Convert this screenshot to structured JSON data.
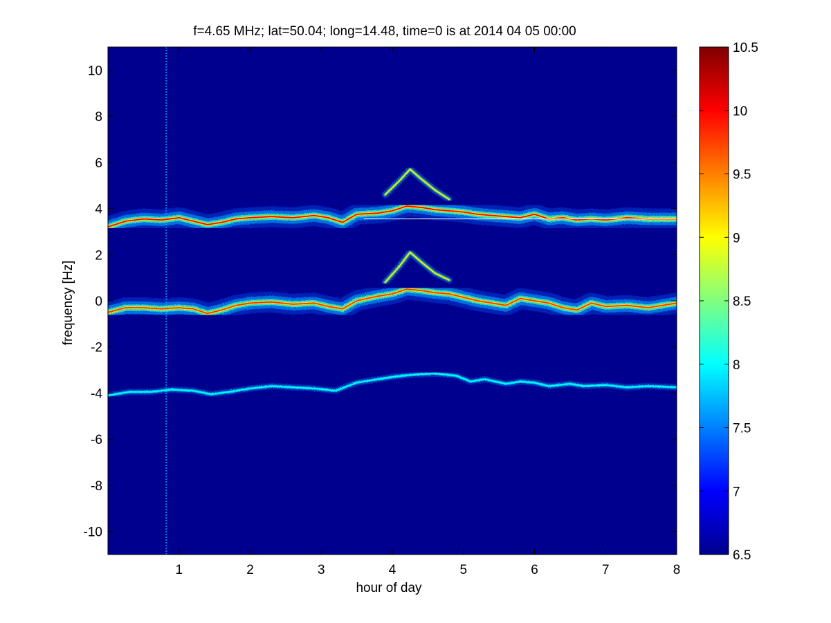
{
  "chart_data": {
    "type": "heatmap",
    "title": "f=4.65 MHz;  lat=50.04; long=14.48, time=0 is at 2014 04 05 00:00",
    "xlabel": "hour of day",
    "ylabel": "frequency [Hz]",
    "xlim": [
      0,
      8
    ],
    "ylim": [
      -11,
      11
    ],
    "xticks": [
      1,
      2,
      3,
      4,
      5,
      6,
      7,
      8
    ],
    "yticks": [
      -10,
      -8,
      -6,
      -4,
      -2,
      0,
      2,
      4,
      6,
      8,
      10
    ],
    "colorbar": {
      "min": 6.5,
      "max": 10.5,
      "ticks": [
        6.5,
        7,
        7.5,
        8,
        8.5,
        9,
        9.5,
        10,
        10.5
      ],
      "colormap": "jet"
    },
    "background_color": "#00008F",
    "vertical_streak_hour": 0.82,
    "traces": [
      {
        "name_hint": "upper trace",
        "peak_intensity": 10.0,
        "points": [
          [
            0,
            3.2
          ],
          [
            0.25,
            3.45
          ],
          [
            0.5,
            3.55
          ],
          [
            0.75,
            3.5
          ],
          [
            1.0,
            3.6
          ],
          [
            1.2,
            3.45
          ],
          [
            1.4,
            3.3
          ],
          [
            1.6,
            3.4
          ],
          [
            1.8,
            3.55
          ],
          [
            2.0,
            3.6
          ],
          [
            2.3,
            3.65
          ],
          [
            2.6,
            3.6
          ],
          [
            2.9,
            3.7
          ],
          [
            3.1,
            3.6
          ],
          [
            3.3,
            3.4
          ],
          [
            3.5,
            3.75
          ],
          [
            3.8,
            3.8
          ],
          [
            4.0,
            3.9
          ],
          [
            4.2,
            4.1
          ],
          [
            4.4,
            4.05
          ],
          [
            4.6,
            3.95
          ],
          [
            4.8,
            3.9
          ],
          [
            5.0,
            3.85
          ],
          [
            5.2,
            3.75
          ],
          [
            5.4,
            3.7
          ],
          [
            5.6,
            3.65
          ],
          [
            5.8,
            3.6
          ],
          [
            6.0,
            3.75
          ],
          [
            6.2,
            3.55
          ],
          [
            6.4,
            3.6
          ],
          [
            6.6,
            3.5
          ],
          [
            6.8,
            3.55
          ],
          [
            7.0,
            3.5
          ],
          [
            7.3,
            3.6
          ],
          [
            7.6,
            3.55
          ],
          [
            8.0,
            3.55
          ]
        ]
      },
      {
        "name_hint": "middle trace",
        "peak_intensity": 9.8,
        "points": [
          [
            0,
            -0.5
          ],
          [
            0.25,
            -0.3
          ],
          [
            0.5,
            -0.3
          ],
          [
            0.75,
            -0.35
          ],
          [
            1.0,
            -0.3
          ],
          [
            1.2,
            -0.35
          ],
          [
            1.4,
            -0.55
          ],
          [
            1.6,
            -0.4
          ],
          [
            1.8,
            -0.2
          ],
          [
            2.0,
            -0.1
          ],
          [
            2.3,
            -0.05
          ],
          [
            2.6,
            -0.15
          ],
          [
            2.9,
            -0.1
          ],
          [
            3.1,
            -0.25
          ],
          [
            3.3,
            -0.35
          ],
          [
            3.5,
            0.0
          ],
          [
            3.8,
            0.2
          ],
          [
            4.0,
            0.3
          ],
          [
            4.2,
            0.5
          ],
          [
            4.4,
            0.45
          ],
          [
            4.6,
            0.35
          ],
          [
            4.8,
            0.3
          ],
          [
            5.0,
            0.15
          ],
          [
            5.2,
            0.0
          ],
          [
            5.4,
            -0.1
          ],
          [
            5.6,
            -0.2
          ],
          [
            5.8,
            0.1
          ],
          [
            6.0,
            0.0
          ],
          [
            6.2,
            -0.1
          ],
          [
            6.4,
            -0.3
          ],
          [
            6.6,
            -0.4
          ],
          [
            6.8,
            -0.1
          ],
          [
            7.0,
            -0.25
          ],
          [
            7.3,
            -0.2
          ],
          [
            7.6,
            -0.3
          ],
          [
            8.0,
            -0.1
          ]
        ]
      },
      {
        "name_hint": "lower trace",
        "peak_intensity": 8.0,
        "points": [
          [
            0,
            -4.1
          ],
          [
            0.3,
            -3.95
          ],
          [
            0.6,
            -3.95
          ],
          [
            0.9,
            -3.85
          ],
          [
            1.2,
            -3.9
          ],
          [
            1.45,
            -4.05
          ],
          [
            1.7,
            -3.95
          ],
          [
            2.0,
            -3.8
          ],
          [
            2.3,
            -3.7
          ],
          [
            2.6,
            -3.75
          ],
          [
            2.9,
            -3.8
          ],
          [
            3.2,
            -3.9
          ],
          [
            3.5,
            -3.55
          ],
          [
            3.8,
            -3.4
          ],
          [
            4.0,
            -3.3
          ],
          [
            4.3,
            -3.2
          ],
          [
            4.6,
            -3.15
          ],
          [
            4.9,
            -3.25
          ],
          [
            5.1,
            -3.5
          ],
          [
            5.3,
            -3.4
          ],
          [
            5.6,
            -3.6
          ],
          [
            5.8,
            -3.5
          ],
          [
            6.0,
            -3.55
          ],
          [
            6.2,
            -3.7
          ],
          [
            6.5,
            -3.6
          ],
          [
            6.7,
            -3.7
          ],
          [
            7.0,
            -3.65
          ],
          [
            7.3,
            -3.75
          ],
          [
            7.6,
            -3.7
          ],
          [
            8.0,
            -3.75
          ]
        ]
      },
      {
        "name_hint": "upper harmonic arcs",
        "peak_intensity": 8.0,
        "points": [
          [
            3.9,
            4.6
          ],
          [
            4.1,
            5.2
          ],
          [
            4.25,
            5.7
          ],
          [
            4.4,
            5.3
          ],
          [
            4.6,
            4.8
          ],
          [
            4.8,
            4.4
          ]
        ]
      },
      {
        "name_hint": "middle harmonic arcs",
        "peak_intensity": 8.0,
        "points": [
          [
            3.9,
            0.8
          ],
          [
            4.1,
            1.5
          ],
          [
            4.25,
            2.1
          ],
          [
            4.4,
            1.7
          ],
          [
            4.6,
            1.2
          ],
          [
            4.8,
            0.9
          ]
        ]
      }
    ],
    "flat_line": {
      "y": 3.55,
      "x_start": 3.6,
      "x_end": 8.0,
      "color": "#e6f6f6"
    },
    "grid": false,
    "legend": "none"
  }
}
